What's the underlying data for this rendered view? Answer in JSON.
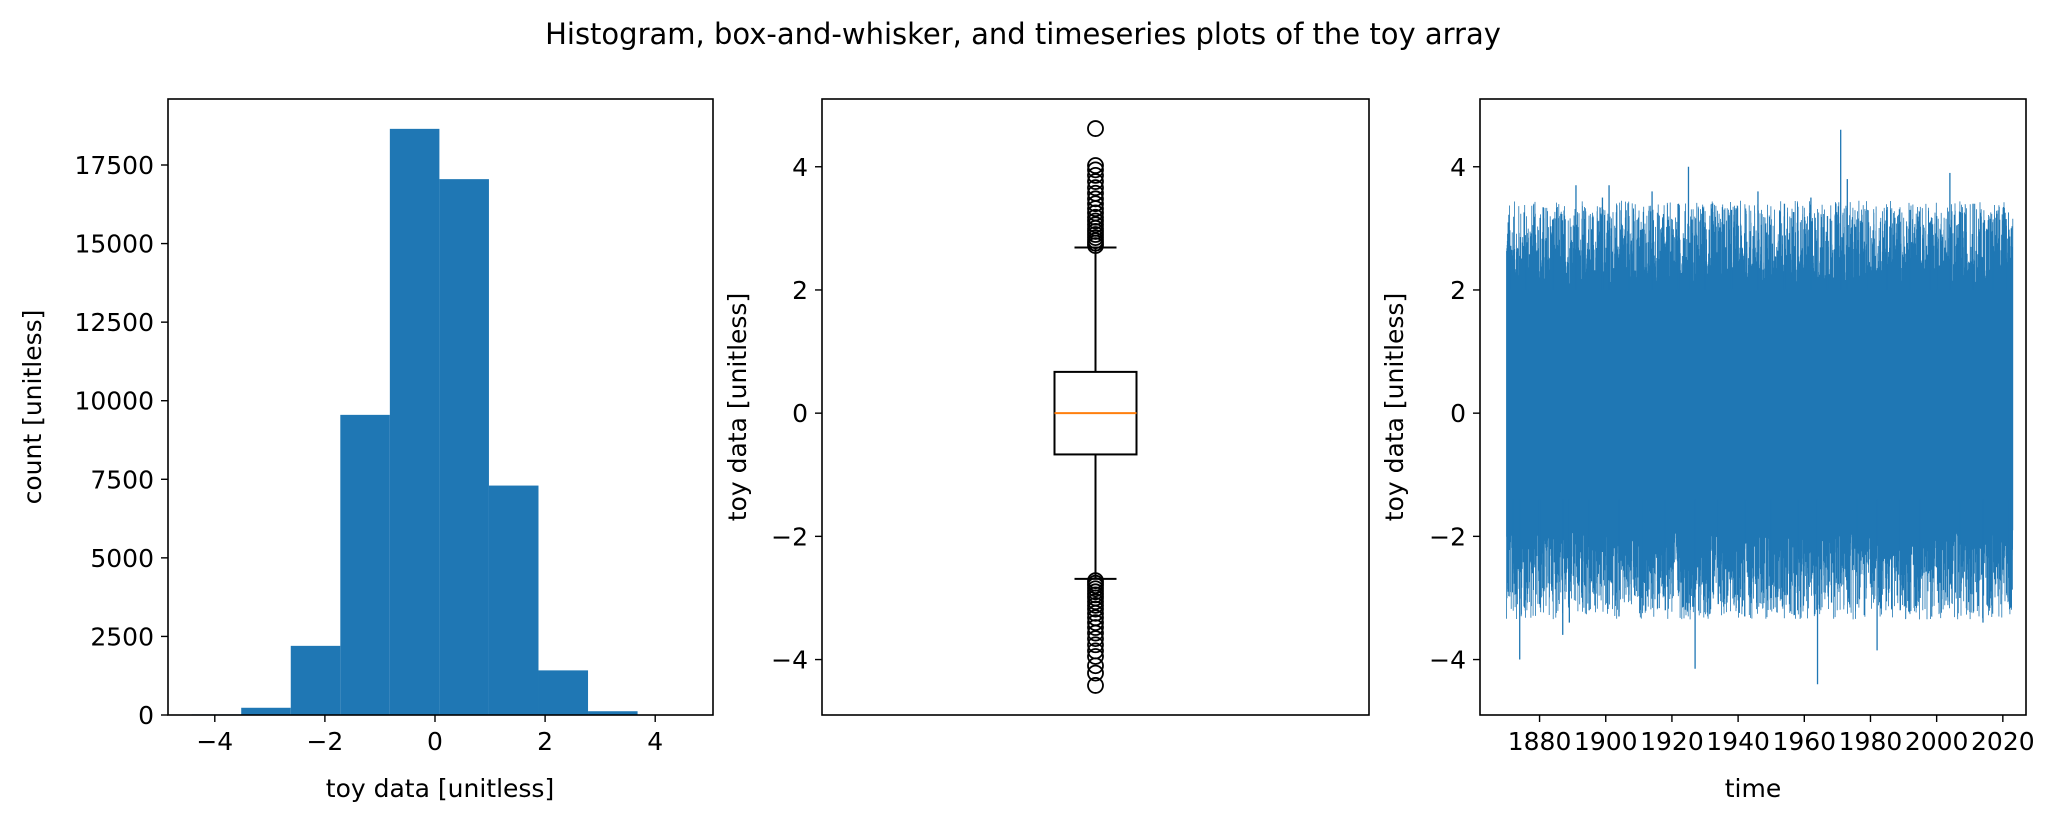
{
  "figure": {
    "suptitle": "Histogram, box-and-whisker, and timeseries plots of the toy array"
  },
  "colors": {
    "series": "#1f77b4",
    "median": "#ff7f0e",
    "axes": "#000000"
  },
  "chart_data": [
    {
      "type": "bar",
      "subtype": "histogram",
      "xlabel": "toy data [unitless]",
      "ylabel": "count [unitless]",
      "xlim": [
        -4.85,
        5.05
      ],
      "ylim": [
        0,
        19600
      ],
      "xticks": [
        -4,
        -2,
        0,
        2,
        4
      ],
      "yticks": [
        0,
        2500,
        5000,
        7500,
        10000,
        12500,
        15000,
        17500
      ],
      "bin_edges": [
        -4.42,
        -3.52,
        -2.62,
        -1.72,
        -0.82,
        0.08,
        0.98,
        1.88,
        2.78,
        3.68,
        4.6
      ],
      "values": [
        20,
        230,
        2200,
        9550,
        18650,
        17050,
        7300,
        1420,
        120,
        5
      ]
    },
    {
      "type": "box",
      "xlabel": "",
      "ylabel": "toy data [unitless]",
      "ylim": [
        -4.9,
        5.1
      ],
      "yticks": [
        -4,
        -2,
        0,
        2,
        4
      ],
      "xticks": [],
      "median": 0.0,
      "q1": -0.67,
      "q3": 0.67,
      "whisker_low": -2.69,
      "whisker_high": 2.69,
      "outliers_high": [
        2.72,
        2.76,
        2.8,
        2.85,
        2.9,
        2.95,
        3.0,
        3.06,
        3.12,
        3.18,
        3.25,
        3.32,
        3.4,
        3.48,
        3.57,
        3.66,
        3.76,
        3.86,
        3.95,
        4.02,
        4.62
      ],
      "outliers_low": [
        -2.72,
        -2.76,
        -2.8,
        -2.85,
        -2.9,
        -2.95,
        -3.0,
        -3.06,
        -3.12,
        -3.18,
        -3.25,
        -3.32,
        -3.4,
        -3.48,
        -3.57,
        -3.66,
        -3.76,
        -3.86,
        -3.95,
        -4.1,
        -4.22,
        -4.42
      ]
    },
    {
      "type": "line",
      "xlabel": "time",
      "ylabel": "toy data [unitless]",
      "xlim": [
        1862,
        2027
      ],
      "ylim": [
        -4.9,
        5.1
      ],
      "xticks": [
        1880,
        1900,
        1920,
        1940,
        1960,
        1980,
        2000,
        2020
      ],
      "yticks": [
        -4,
        -2,
        0,
        2,
        4
      ],
      "x_start": 1870,
      "x_end": 2023,
      "band_low": -1.4,
      "band_high": 2.0,
      "extremes": [
        {
          "x": 1871,
          "y": 2.55
        },
        {
          "x": 1872,
          "y": -2.6
        },
        {
          "x": 1874,
          "y": -4.0
        },
        {
          "x": 1876,
          "y": 2.7
        },
        {
          "x": 1880,
          "y": -3.1
        },
        {
          "x": 1884,
          "y": 2.9
        },
        {
          "x": 1887,
          "y": -3.6
        },
        {
          "x": 1889,
          "y": -3.4
        },
        {
          "x": 1891,
          "y": 3.7
        },
        {
          "x": 1895,
          "y": -3.2
        },
        {
          "x": 1899,
          "y": 3.5
        },
        {
          "x": 1901,
          "y": 3.7
        },
        {
          "x": 1904,
          "y": -3.3
        },
        {
          "x": 1907,
          "y": 3.2
        },
        {
          "x": 1911,
          "y": -3.0
        },
        {
          "x": 1914,
          "y": 3.6
        },
        {
          "x": 1918,
          "y": -3.2
        },
        {
          "x": 1922,
          "y": 3.4
        },
        {
          "x": 1925,
          "y": 4.0
        },
        {
          "x": 1927,
          "y": -4.15
        },
        {
          "x": 1930,
          "y": 3.1
        },
        {
          "x": 1934,
          "y": -3.1
        },
        {
          "x": 1938,
          "y": 3.3
        },
        {
          "x": 1942,
          "y": -3.3
        },
        {
          "x": 1946,
          "y": 3.6
        },
        {
          "x": 1950,
          "y": -3.0
        },
        {
          "x": 1954,
          "y": 3.4
        },
        {
          "x": 1958,
          "y": -3.2
        },
        {
          "x": 1962,
          "y": 3.5
        },
        {
          "x": 1964,
          "y": -4.4
        },
        {
          "x": 1967,
          "y": 3.2
        },
        {
          "x": 1971,
          "y": 4.6
        },
        {
          "x": 1973,
          "y": 3.8
        },
        {
          "x": 1976,
          "y": -3.1
        },
        {
          "x": 1979,
          "y": 3.3
        },
        {
          "x": 1982,
          "y": -3.85
        },
        {
          "x": 1985,
          "y": 3.3
        },
        {
          "x": 1989,
          "y": -3.2
        },
        {
          "x": 1992,
          "y": 3.3
        },
        {
          "x": 1995,
          "y": -3.0
        },
        {
          "x": 1998,
          "y": 3.1
        },
        {
          "x": 2000,
          "y": 3.2
        },
        {
          "x": 2004,
          "y": 3.9
        },
        {
          "x": 2007,
          "y": -3.0
        },
        {
          "x": 2011,
          "y": 3.4
        },
        {
          "x": 2014,
          "y": -3.4
        },
        {
          "x": 2017,
          "y": 3.1
        },
        {
          "x": 2021,
          "y": 3.15
        },
        {
          "x": 2022,
          "y": -2.6
        }
      ]
    }
  ]
}
